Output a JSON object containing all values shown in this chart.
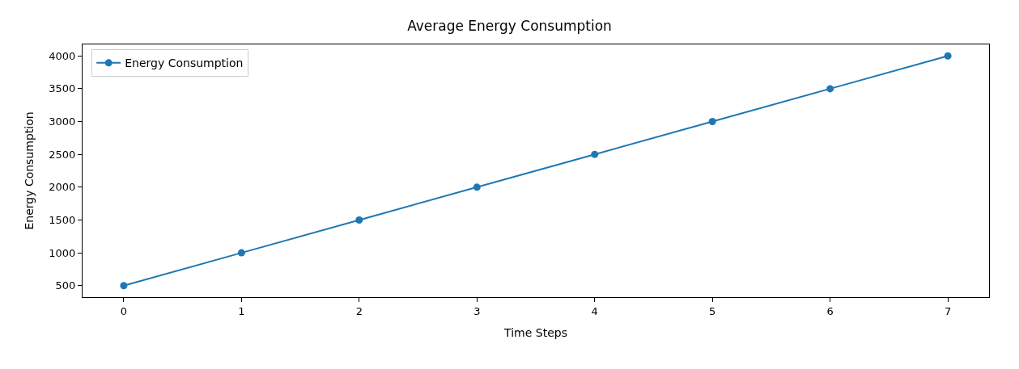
{
  "chart_data": {
    "type": "line",
    "title": "Average Energy Consumption",
    "xlabel": "Time Steps",
    "ylabel": "Energy Consumption",
    "x": [
      0,
      1,
      2,
      3,
      4,
      5,
      6,
      7
    ],
    "series": [
      {
        "name": "Energy Consumption",
        "color": "#1f77b4",
        "values": [
          500,
          1000,
          1500,
          2000,
          2500,
          3000,
          3500,
          4000
        ]
      }
    ],
    "xlim": [
      -0.35,
      7.35
    ],
    "xticks": [
      0,
      1,
      2,
      3,
      4,
      5,
      6,
      7
    ],
    "ylim": [
      325,
      4175
    ],
    "yticks": [
      500,
      1000,
      1500,
      2000,
      2500,
      3000,
      3500,
      4000
    ],
    "legend": "top left",
    "marker": "circle",
    "line_style": "solid"
  }
}
